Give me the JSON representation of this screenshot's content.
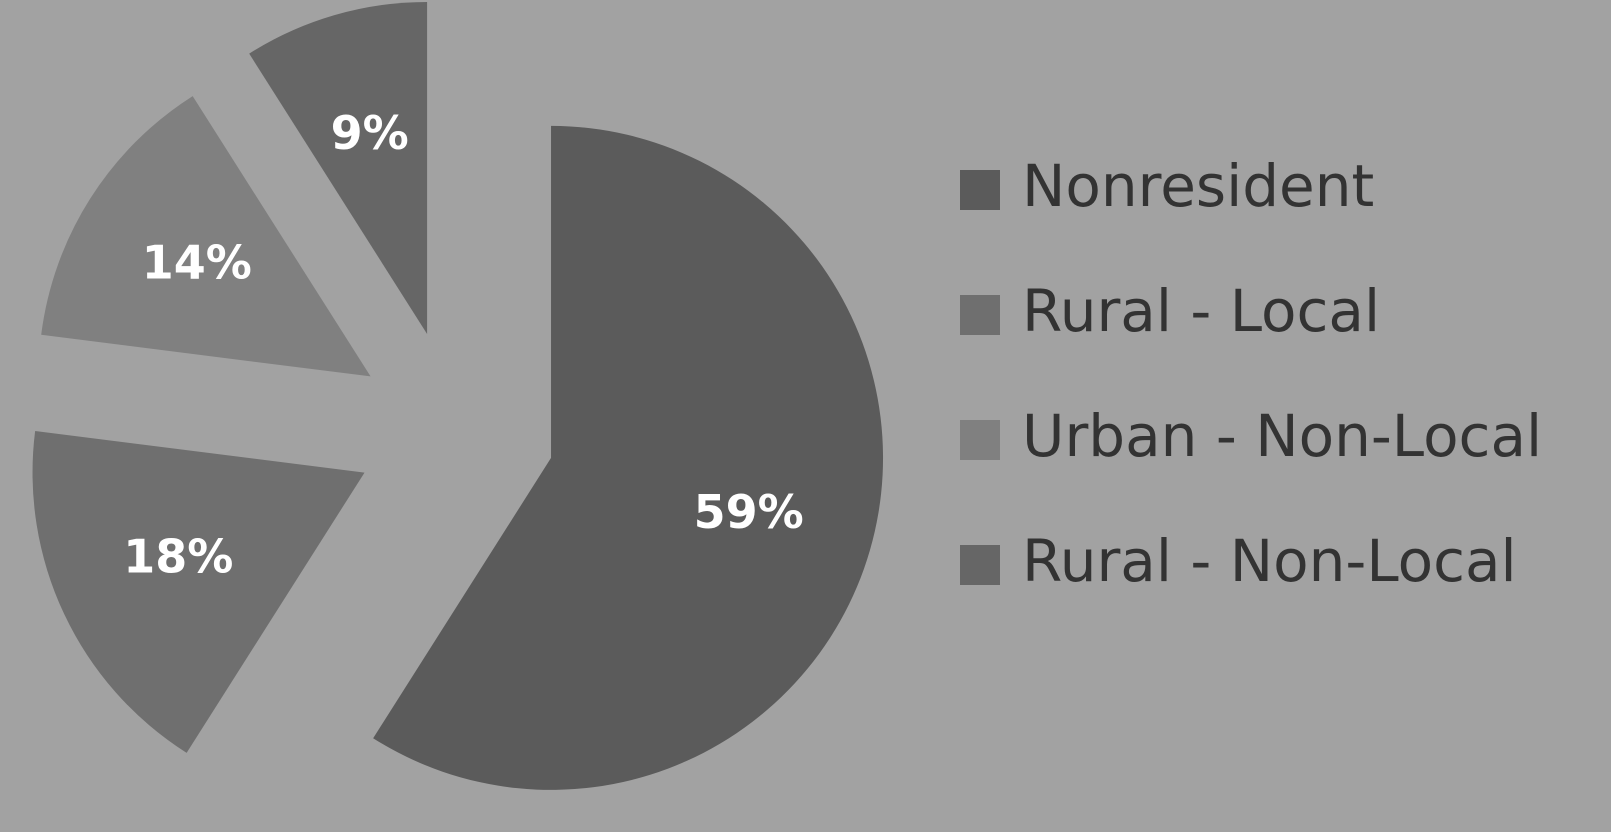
{
  "chart_data": {
    "type": "pie",
    "categories": [
      "Nonresident",
      "Rural - Local",
      "Urban - Non-Local",
      "Rural - Non-Local"
    ],
    "values": [
      59,
      18,
      14,
      9
    ],
    "value_labels": [
      "59%",
      "18%",
      "14%",
      "9%"
    ],
    "colors": [
      "#5b5b5b",
      "#6f6f6f",
      "#808080",
      "#666666"
    ],
    "exploded": true,
    "legend": "right"
  }
}
